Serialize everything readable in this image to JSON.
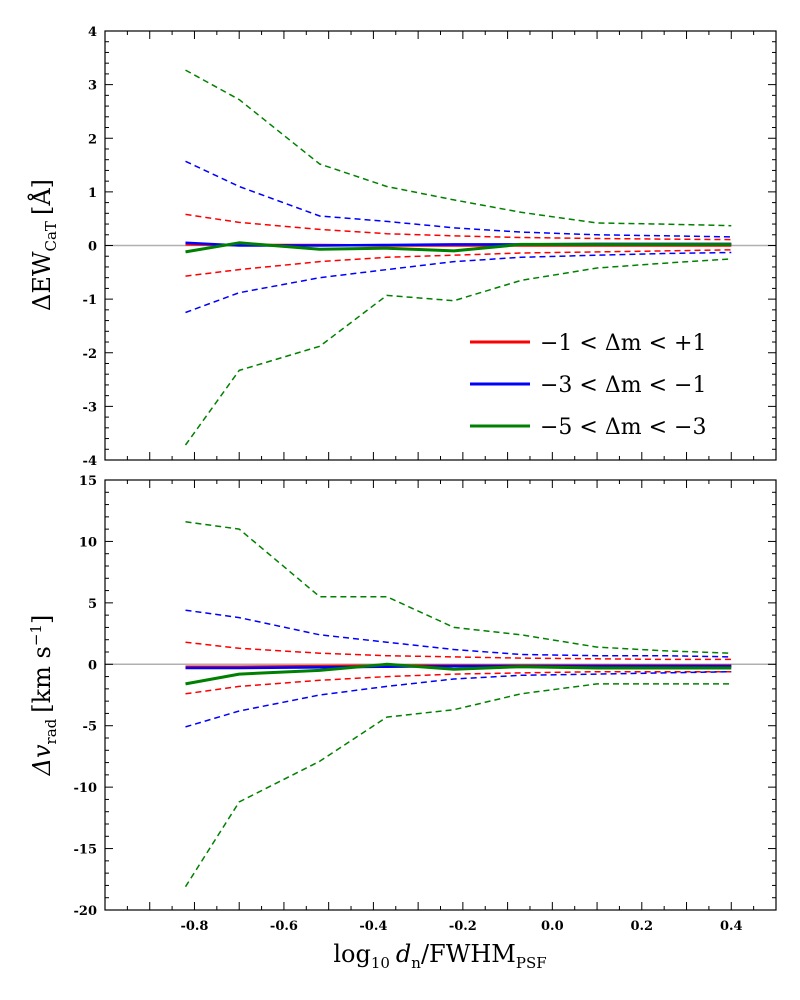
{
  "chart_data": [
    {
      "type": "line",
      "panel": "top",
      "ylabel": "ΔEW",
      "ylabel_sub": "CaT",
      "ylabel_unit": "[Å]",
      "xlabel": "",
      "ylim": [
        -4,
        4
      ],
      "xlim": [
        -1.0,
        0.5
      ],
      "yticks": [
        -4,
        -3,
        -2,
        -1,
        0,
        1,
        2,
        3,
        4
      ],
      "yticklabels": [
        "-4",
        "-3",
        "-2",
        "-1",
        "0",
        "1",
        "2",
        "3",
        "4"
      ],
      "reference_line": 0,
      "x": [
        -0.82,
        -0.7,
        -0.52,
        -0.37,
        -0.22,
        -0.07,
        0.1,
        0.25,
        0.4
      ],
      "series": [
        {
          "name": "red-median",
          "color": "#ff0000",
          "style": "solid",
          "values": [
            0.02,
            0.01,
            0.01,
            0.0,
            0.0,
            0.0,
            0.0,
            0.0,
            0.0
          ]
        },
        {
          "name": "red-upper",
          "color": "#ff0000",
          "style": "dashed",
          "values": [
            0.58,
            0.43,
            0.3,
            0.22,
            0.18,
            0.15,
            0.13,
            0.12,
            0.11
          ]
        },
        {
          "name": "red-lower",
          "color": "#ff0000",
          "style": "dashed",
          "values": [
            -0.57,
            -0.45,
            -0.3,
            -0.22,
            -0.18,
            -0.14,
            -0.12,
            -0.1,
            -0.08
          ]
        },
        {
          "name": "blue-median",
          "color": "#0000ff",
          "style": "solid",
          "values": [
            0.05,
            0.0,
            0.0,
            0.01,
            0.02,
            0.02,
            0.03,
            0.03,
            0.03
          ]
        },
        {
          "name": "blue-upper",
          "color": "#0000ff",
          "style": "dashed",
          "values": [
            1.57,
            1.1,
            0.55,
            0.45,
            0.33,
            0.25,
            0.2,
            0.18,
            0.16
          ]
        },
        {
          "name": "blue-lower",
          "color": "#0000ff",
          "style": "dashed",
          "values": [
            -1.25,
            -0.88,
            -0.6,
            -0.45,
            -0.3,
            -0.22,
            -0.18,
            -0.15,
            -0.13
          ]
        },
        {
          "name": "green-median",
          "color": "#008000",
          "style": "solid",
          "values": [
            -0.12,
            0.05,
            -0.07,
            -0.05,
            -0.1,
            0.02,
            0.02,
            0.02,
            0.02
          ]
        },
        {
          "name": "green-upper",
          "color": "#008000",
          "style": "dashed",
          "values": [
            3.27,
            2.72,
            1.52,
            1.1,
            0.85,
            0.62,
            0.42,
            0.4,
            0.37
          ]
        },
        {
          "name": "green-lower",
          "color": "#008000",
          "style": "dashed",
          "values": [
            -3.72,
            -2.33,
            -1.88,
            -0.93,
            -1.03,
            -0.65,
            -0.42,
            -0.33,
            -0.25
          ]
        }
      ]
    },
    {
      "type": "line",
      "panel": "bottom",
      "ylabel": "Δv",
      "ylabel_sub": "rad",
      "ylabel_unit": "[km s",
      "ylabel_unit_sup": "−1",
      "ylabel_unit_end": "]",
      "xlabel": "log",
      "xlabel_sub1": "10",
      "xlabel_var": "d",
      "xlabel_sub2": "n",
      "xlabel_rest": "/FWHM",
      "xlabel_sub3": "PSF",
      "ylim": [
        -20,
        15
      ],
      "xlim": [
        -1.0,
        0.5
      ],
      "yticks": [
        -20,
        -15,
        -10,
        -5,
        0,
        5,
        10,
        15
      ],
      "yticklabels": [
        "-20",
        "-15",
        "-10",
        "-5",
        "0",
        "5",
        "10",
        "15"
      ],
      "xticks": [
        -0.8,
        -0.6,
        -0.4,
        -0.2,
        0.0,
        0.2,
        0.4
      ],
      "xticklabels": [
        "-0.8",
        "-0.6",
        "-0.4",
        "-0.2",
        "0.0",
        "0.2",
        "0.4"
      ],
      "reference_line": 0,
      "x": [
        -0.82,
        -0.7,
        -0.52,
        -0.37,
        -0.22,
        -0.07,
        0.1,
        0.25,
        0.4
      ],
      "series": [
        {
          "name": "red-median",
          "color": "#ff0000",
          "style": "solid",
          "values": [
            -0.2,
            -0.2,
            -0.15,
            -0.1,
            -0.1,
            -0.1,
            -0.1,
            -0.1,
            -0.1
          ]
        },
        {
          "name": "red-upper",
          "color": "#ff0000",
          "style": "dashed",
          "values": [
            1.8,
            1.3,
            0.9,
            0.7,
            0.6,
            0.5,
            0.45,
            0.4,
            0.4
          ]
        },
        {
          "name": "red-lower",
          "color": "#ff0000",
          "style": "dashed",
          "values": [
            -2.4,
            -1.8,
            -1.3,
            -1.0,
            -0.8,
            -0.7,
            -0.6,
            -0.6,
            -0.6
          ]
        },
        {
          "name": "blue-median",
          "color": "#0000ff",
          "style": "solid",
          "values": [
            -0.3,
            -0.3,
            -0.25,
            -0.2,
            -0.15,
            -0.15,
            -0.15,
            -0.15,
            -0.15
          ]
        },
        {
          "name": "blue-upper",
          "color": "#0000ff",
          "style": "dashed",
          "values": [
            4.4,
            3.8,
            2.4,
            1.8,
            1.2,
            0.8,
            0.7,
            0.7,
            0.6
          ]
        },
        {
          "name": "blue-lower",
          "color": "#0000ff",
          "style": "dashed",
          "values": [
            -5.1,
            -3.8,
            -2.5,
            -1.8,
            -1.2,
            -0.9,
            -0.8,
            -0.7,
            -0.6
          ]
        },
        {
          "name": "green-median",
          "color": "#008000",
          "style": "solid",
          "values": [
            -1.6,
            -0.8,
            -0.5,
            0.0,
            -0.4,
            -0.2,
            -0.3,
            -0.3,
            -0.3
          ]
        },
        {
          "name": "green-upper",
          "color": "#008000",
          "style": "dashed",
          "values": [
            11.6,
            11.0,
            5.5,
            5.5,
            3.0,
            2.4,
            1.4,
            1.1,
            0.9
          ]
        },
        {
          "name": "green-lower",
          "color": "#008000",
          "style": "dashed",
          "values": [
            -18.1,
            -11.2,
            -7.9,
            -4.3,
            -3.7,
            -2.4,
            -1.6,
            -1.6,
            -1.6
          ]
        }
      ]
    }
  ],
  "legend": {
    "placement": "lower-right",
    "entries": [
      {
        "color": "#ff0000",
        "label": "−1 < Δm < +1"
      },
      {
        "color": "#0000ff",
        "label": "−3 < Δm < −1"
      },
      {
        "color": "#008000",
        "label": "−5 < Δm < −3"
      }
    ]
  }
}
